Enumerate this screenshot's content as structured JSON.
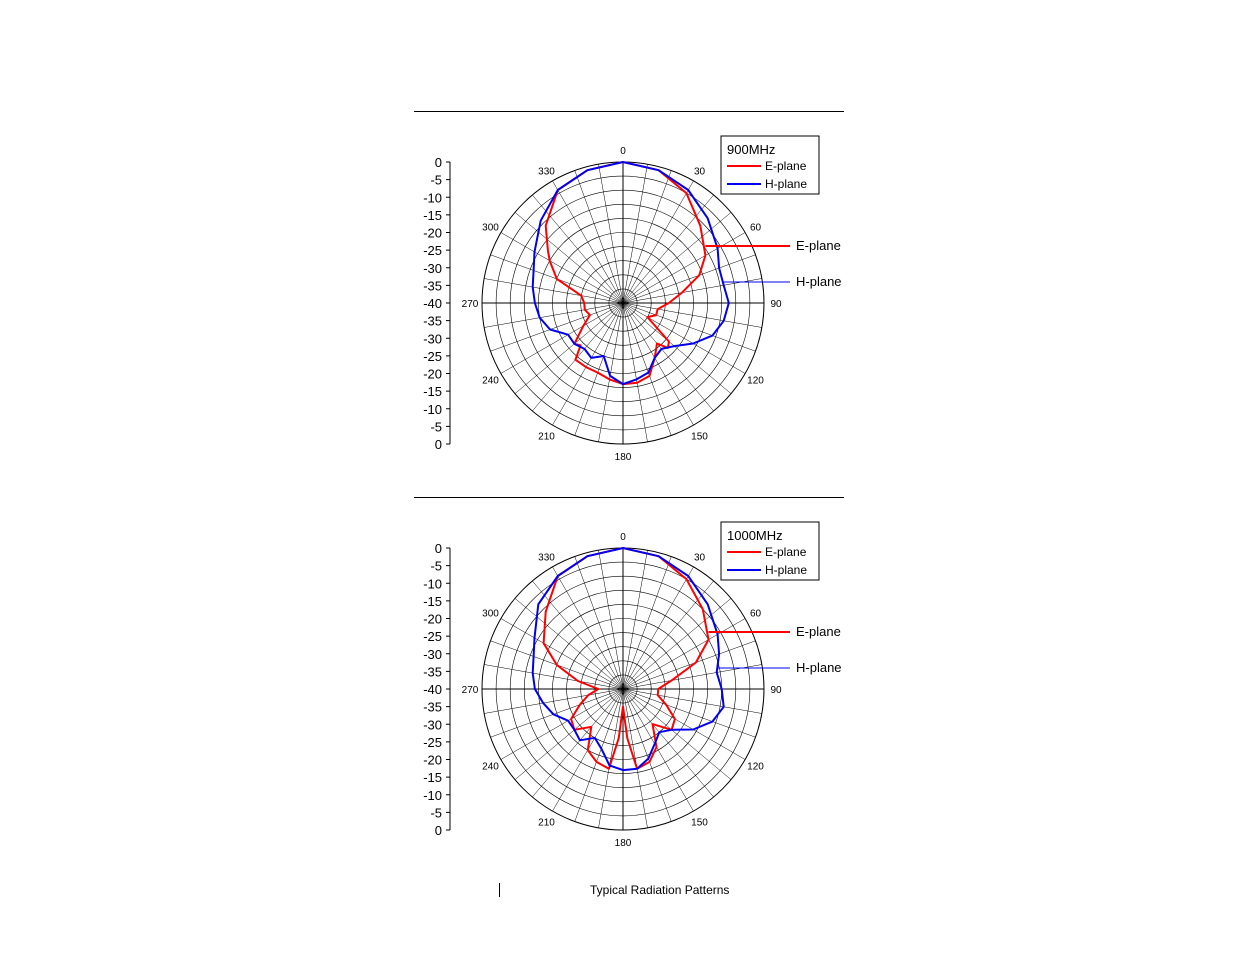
{
  "colors": {
    "e_plane": "#ff0000",
    "h_plane": "#0000ee",
    "grid": "#000000"
  },
  "footer": {
    "caption": "Typical Radiation Patterns"
  },
  "chart_data": [
    {
      "type": "polar",
      "legend": {
        "title": "900MHz",
        "entries": [
          "E-plane",
          "H-plane"
        ],
        "placement": "top-right"
      },
      "callouts": [
        "E-plane",
        "H-plane"
      ],
      "angle_ticks": [
        "0",
        "30",
        "60",
        "90",
        "120",
        "150",
        "180",
        "210",
        "240",
        "270",
        "300",
        "330"
      ],
      "radial_ticks": [
        "0",
        "-5",
        "-10",
        "-15",
        "-20",
        "-25",
        "-30",
        "-35",
        "-40",
        "-35",
        "-30",
        "-25",
        "-20",
        "-15",
        "-10",
        "-5",
        "0"
      ],
      "r_range_db": [
        -40,
        0
      ],
      "series": [
        {
          "name": "E-plane",
          "color": "#ff0000",
          "angles": [
            0,
            15,
            30,
            45,
            55,
            60,
            70,
            80,
            90,
            100,
            110,
            120,
            130,
            135,
            140,
            150,
            160,
            170,
            180,
            190,
            200,
            210,
            220,
            225,
            230,
            240,
            250,
            260,
            270,
            280,
            290,
            300,
            305,
            315,
            330,
            345,
            360
          ],
          "values": [
            0,
            -1,
            -4,
            -9,
            -12,
            -13,
            -17,
            -23,
            -27,
            -30,
            -30,
            -32,
            -23,
            -22,
            -25,
            -22,
            -18,
            -17,
            -17,
            -18,
            -19,
            -19,
            -19,
            -23,
            -22,
            -27,
            -30,
            -29,
            -29,
            -28,
            -20,
            -16,
            -14,
            -9,
            -3,
            -1,
            0
          ]
        },
        {
          "name": "H-plane",
          "color": "#0000ee",
          "angles": [
            0,
            15,
            30,
            45,
            60,
            70,
            80,
            90,
            100,
            110,
            120,
            130,
            140,
            150,
            160,
            170,
            180,
            190,
            200,
            210,
            220,
            230,
            240,
            250,
            260,
            270,
            280,
            290,
            300,
            315,
            330,
            345,
            360
          ],
          "values": [
            0,
            -1,
            -3,
            -6,
            -9,
            -11,
            -11,
            -10,
            -11,
            -13,
            -17,
            -21,
            -23,
            -22,
            -19,
            -18,
            -17,
            -19,
            -24,
            -22,
            -23,
            -22,
            -22,
            -18,
            -16,
            -15,
            -14,
            -13,
            -11,
            -7,
            -3,
            -1,
            0
          ]
        }
      ]
    },
    {
      "type": "polar",
      "legend": {
        "title": "1000MHz",
        "entries": [
          "E-plane",
          "H-plane"
        ],
        "placement": "top-right"
      },
      "callouts": [
        "E-plane",
        "H-plane"
      ],
      "angle_ticks": [
        "0",
        "30",
        "60",
        "90",
        "120",
        "150",
        "180",
        "210",
        "240",
        "270",
        "300",
        "330"
      ],
      "radial_ticks": [
        "0",
        "-5",
        "-10",
        "-15",
        "-20",
        "-25",
        "-30",
        "-35",
        "-40",
        "-35",
        "-30",
        "-25",
        "-20",
        "-15",
        "-10",
        "-5",
        "0"
      ],
      "r_range_db": [
        -40,
        0
      ],
      "series": [
        {
          "name": "E-plane",
          "color": "#ff0000",
          "angles": [
            0,
            15,
            30,
            45,
            60,
            70,
            80,
            90,
            100,
            110,
            120,
            130,
            140,
            150,
            160,
            170,
            175,
            180,
            185,
            190,
            200,
            210,
            220,
            230,
            240,
            250,
            260,
            270,
            280,
            290,
            300,
            315,
            330,
            345,
            360
          ],
          "values": [
            0,
            -1,
            -4,
            -8,
            -12,
            -18,
            -26,
            -30,
            -30,
            -27,
            -23,
            -22,
            -27,
            -21,
            -18,
            -17,
            -26,
            -35,
            -26,
            -17,
            -18,
            -20,
            -26,
            -22,
            -23,
            -27,
            -30,
            -33,
            -27,
            -20,
            -14,
            -9,
            -3,
            -1,
            0
          ]
        },
        {
          "name": "H-plane",
          "color": "#0000ee",
          "angles": [
            0,
            15,
            30,
            45,
            60,
            70,
            80,
            90,
            100,
            110,
            120,
            130,
            140,
            150,
            160,
            170,
            180,
            190,
            200,
            210,
            220,
            230,
            240,
            250,
            260,
            270,
            280,
            290,
            300,
            315,
            330,
            345,
            360
          ],
          "values": [
            0,
            -1,
            -3,
            -6,
            -9,
            -11,
            -13,
            -12,
            -11,
            -13,
            -17,
            -22,
            -24,
            -22,
            -19,
            -17,
            -17,
            -18,
            -22,
            -24,
            -21,
            -22,
            -22,
            -19,
            -17,
            -15,
            -14,
            -13,
            -11,
            -6,
            -3,
            -1,
            0
          ]
        }
      ]
    }
  ]
}
